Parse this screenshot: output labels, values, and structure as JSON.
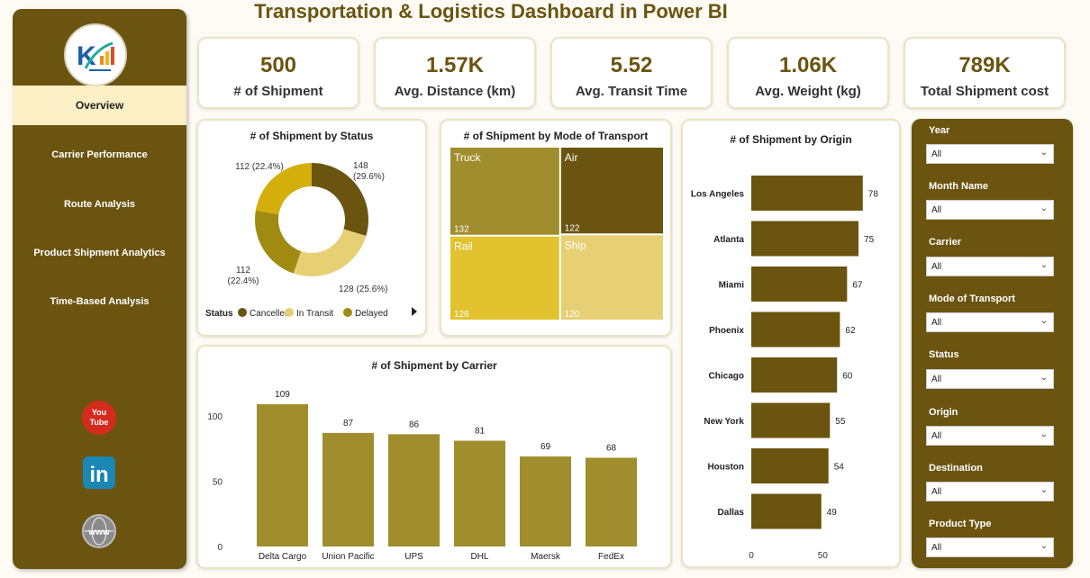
{
  "title": "Transportation & Logistics Dashboard in Power BI",
  "nav": [
    {
      "label": "Overview",
      "active": true
    },
    {
      "label": "Carrier Performance"
    },
    {
      "label": "Route Analysis"
    },
    {
      "label": "Product Shipment Analytics"
    },
    {
      "label": "Time-Based Analysis"
    }
  ],
  "social": [
    {
      "icon": "youtube-icon",
      "color": "#d42b1e",
      "label": "You Tube"
    },
    {
      "icon": "linkedin-icon",
      "color": "#1a87b5",
      "label": "in"
    },
    {
      "icon": "globe-icon",
      "color": "#8a8a8a",
      "label": "www"
    }
  ],
  "kpis": [
    {
      "value": "500",
      "label": "# of Shipment"
    },
    {
      "value": "1.57K",
      "label": "Avg. Distance (km)"
    },
    {
      "value": "5.52",
      "label": "Avg. Transit Time"
    },
    {
      "value": "1.06K",
      "label": "Avg. Weight (kg)"
    },
    {
      "value": "789K",
      "label": "Total Shipment cost"
    }
  ],
  "filters": [
    {
      "label": "Year",
      "value": "All"
    },
    {
      "label": "Month Name",
      "value": "All"
    },
    {
      "label": "Carrier",
      "value": "All"
    },
    {
      "label": "Mode of Transport",
      "value": "All"
    },
    {
      "label": "Status",
      "value": "All"
    },
    {
      "label": "Origin",
      "value": "All"
    },
    {
      "label": "Destination",
      "value": "All"
    },
    {
      "label": "Product Type",
      "value": "All"
    }
  ],
  "colors": {
    "primary": "#6b5410",
    "accent": "#d4af0c",
    "light": "#e7cf73",
    "olive": "#a08d2d",
    "active_bg": "#fbefc6"
  },
  "chart_data": [
    {
      "type": "pie",
      "title": "# of Shipment by Status",
      "legend_title": "Status",
      "legend_placement": "bottom",
      "slices": [
        {
          "name": "Cancelled",
          "value": 148,
          "label": "148 (29.6%)",
          "color": "#6b5410"
        },
        {
          "name": "In Transit",
          "value": 128,
          "label": "128 (25.6%)",
          "color": "#e7cf73"
        },
        {
          "name": "Delayed",
          "value": 112,
          "label": "112 (22.4%)",
          "color": "#a08a12"
        },
        {
          "name": "",
          "value": 112,
          "label": "112 (22.4%)",
          "color": "#d4af0c"
        }
      ]
    },
    {
      "type": "treemap",
      "title": "# of Shipment by Mode of Transport",
      "cells": [
        {
          "name": "Truck",
          "value": 132,
          "color": "#a08d2d"
        },
        {
          "name": "Air",
          "value": 122,
          "color": "#6b5410"
        },
        {
          "name": "Rail",
          "value": 126,
          "color": "#e2c32f"
        },
        {
          "name": "Ship",
          "value": 120,
          "color": "#e7cf73"
        }
      ]
    },
    {
      "type": "bar",
      "orientation": "horizontal",
      "title": "# of Shipment by Origin",
      "categories": [
        "Los Angeles",
        "Atlanta",
        "Miami",
        "Phoenix",
        "Chicago",
        "New York",
        "Houston",
        "Dallas"
      ],
      "values": [
        78,
        75,
        67,
        62,
        60,
        55,
        54,
        49
      ],
      "x_ticks": [
        "0",
        "50"
      ],
      "xlim": [
        0,
        92
      ],
      "color": "#6b5410"
    },
    {
      "type": "bar",
      "title": "# of Shipment by Carrier",
      "categories": [
        "Delta Cargo",
        "Union Pacific",
        "UPS",
        "DHL",
        "Maersk",
        "FedEx"
      ],
      "values": [
        109,
        87,
        86,
        81,
        69,
        68
      ],
      "y_ticks": [
        "0",
        "50",
        "100"
      ],
      "ylim": [
        0,
        120
      ],
      "color": "#a08d2d"
    }
  ]
}
